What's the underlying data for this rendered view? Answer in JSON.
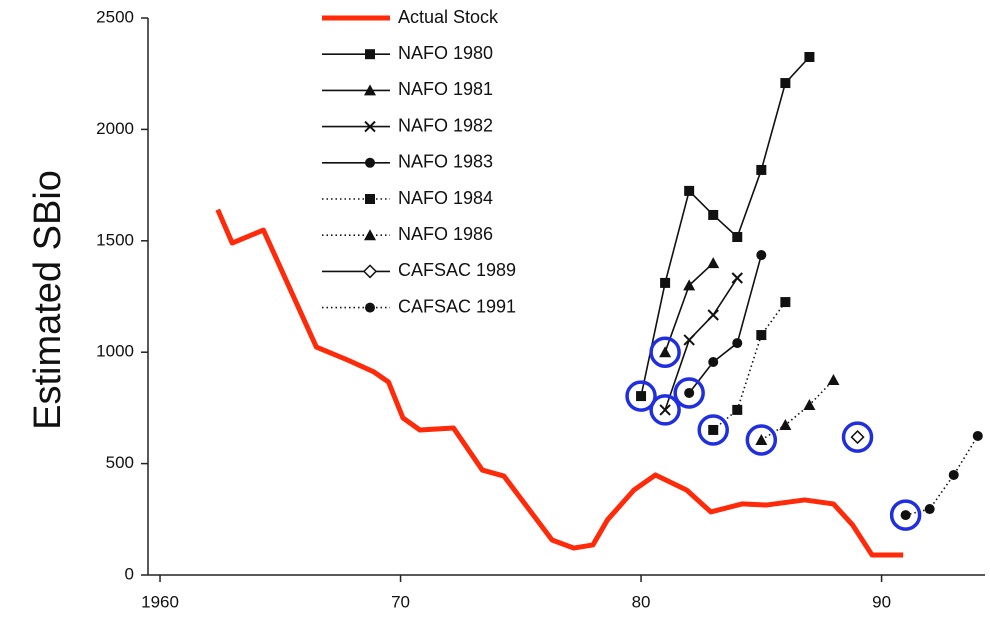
{
  "chart_data": {
    "type": "line",
    "y_label": "Estimated SBio",
    "xlim": [
      1959.5,
      1994.3
    ],
    "xticks": [
      {
        "value": 1960,
        "label": "1960"
      },
      {
        "value": 1970,
        "label": "70"
      },
      {
        "value": 1980,
        "label": "80"
      },
      {
        "value": 1990,
        "label": "90"
      }
    ],
    "ylim": [
      0,
      2500
    ],
    "yticks": [
      0,
      500,
      1000,
      1500,
      2000,
      2500
    ],
    "legend": "top-center",
    "series": [
      {
        "name": "Actual Stock",
        "color": "#ff2a0a",
        "style": "thick",
        "marker": "none",
        "x": [
          1962.4,
          1963,
          1964.3,
          1966.5,
          1967.8,
          1968.9,
          1969.5,
          1970.1,
          1970.8,
          1972.2,
          1973.4,
          1974.3,
          1976.3,
          1977.2,
          1978,
          1978.6,
          1979.7,
          1980.6,
          1981.9,
          1982.9,
          1984.2,
          1985.2,
          1986.8,
          1988,
          1988.8,
          1989.6,
          1990.9
        ],
        "values": [
          1640,
          1490,
          1548,
          1023,
          965,
          911,
          866,
          705,
          651,
          660,
          471,
          444,
          157,
          121,
          135,
          247,
          381,
          449,
          381,
          283,
          319,
          314,
          337,
          319,
          224,
          90,
          90
        ]
      },
      {
        "name": "NAFO 1980",
        "color": "#111111",
        "style": "solid",
        "marker": "square",
        "x": [
          1980,
          1981,
          1982,
          1983,
          1984,
          1985,
          1986,
          1987
        ],
        "values": [
          803,
          1311,
          1724,
          1616,
          1517,
          1818,
          2208,
          2325
        ]
      },
      {
        "name": "NAFO 1981",
        "color": "#111111",
        "style": "solid",
        "marker": "triangle",
        "x": [
          1981,
          1982,
          1983
        ],
        "values": [
          1000,
          1300,
          1400
        ]
      },
      {
        "name": "NAFO 1982",
        "color": "#111111",
        "style": "solid",
        "marker": "cross",
        "x": [
          1981,
          1982,
          1983,
          1984
        ],
        "values": [
          741,
          1055,
          1167,
          1333
        ]
      },
      {
        "name": "NAFO 1983",
        "color": "#111111",
        "style": "solid",
        "marker": "circle",
        "x": [
          1982,
          1983,
          1984,
          1985
        ],
        "values": [
          817,
          956,
          1041,
          1436
        ]
      },
      {
        "name": "NAFO 1984",
        "color": "#111111",
        "style": "dotted",
        "marker": "square",
        "x": [
          1983,
          1984,
          1985,
          1986
        ],
        "values": [
          651,
          741,
          1077,
          1225
        ]
      },
      {
        "name": "NAFO 1986",
        "color": "#111111",
        "style": "dotted",
        "marker": "triangle",
        "x": [
          1985,
          1986,
          1987,
          1988
        ],
        "values": [
          606,
          673,
          763,
          875
        ]
      },
      {
        "name": "CAFSAC 1989",
        "color": "#111111",
        "style": "solid",
        "marker": "diamond",
        "x": [
          1989
        ],
        "values": [
          619
        ]
      },
      {
        "name": "CAFSAC 1991",
        "color": "#111111",
        "style": "dotted",
        "marker": "circle",
        "x": [
          1991,
          1992,
          1993,
          1994
        ],
        "values": [
          269,
          296,
          449,
          624
        ]
      }
    ],
    "highlight_color": "#1f2fe0"
  }
}
